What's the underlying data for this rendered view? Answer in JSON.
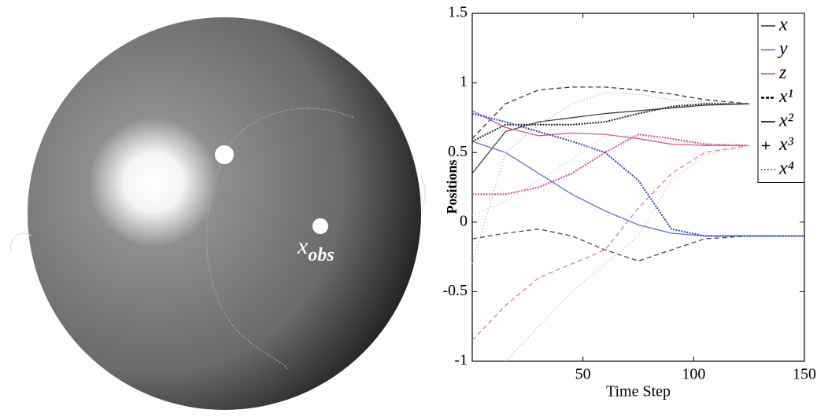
{
  "figure": {
    "sphere_label": {
      "base": "x",
      "subscript": "obs"
    }
  },
  "chart_data": {
    "type": "line",
    "xlabel": "Time Step",
    "ylabel": "Positions",
    "x": [
      0,
      15,
      30,
      45,
      60,
      75,
      90,
      105,
      125,
      150
    ],
    "xlim": [
      0,
      150
    ],
    "xticks": [
      50,
      100,
      150
    ],
    "ylim": [
      -1,
      1.5
    ],
    "yticks": [
      -1,
      -0.5,
      0,
      0.5,
      1,
      1.5
    ],
    "series": [
      {
        "color": "#333333",
        "style": "dashed",
        "values": [
          0.6,
          0.85,
          0.95,
          0.97,
          0.97,
          0.95,
          0.92,
          0.88,
          0.85,
          null
        ]
      },
      {
        "color": "#444466",
        "style": "dashed",
        "values": [
          -0.12,
          -0.08,
          -0.05,
          -0.1,
          -0.2,
          -0.28,
          -0.2,
          -0.12,
          -0.1,
          -0.1
        ]
      },
      {
        "color": "#e07a9a",
        "style": "dashed",
        "values": [
          -0.85,
          -0.6,
          -0.4,
          -0.3,
          -0.2,
          0.1,
          0.35,
          0.5,
          0.55,
          null
        ]
      },
      {
        "color": "#333333",
        "style": "solid",
        "values": [
          0.35,
          0.65,
          0.72,
          0.75,
          0.78,
          0.8,
          0.82,
          0.84,
          0.85,
          null
        ]
      },
      {
        "color": "#5566cc",
        "style": "solid",
        "values": [
          0.58,
          0.5,
          0.35,
          0.2,
          0.08,
          -0.02,
          -0.08,
          -0.1,
          -0.1,
          -0.1
        ]
      },
      {
        "color": "#d04a90",
        "style": "solid",
        "values": [
          0.8,
          0.68,
          0.62,
          0.64,
          0.63,
          0.6,
          0.56,
          0.55,
          0.55,
          null
        ]
      },
      {
        "color": "#222222",
        "style": "plus",
        "values": [
          0.58,
          0.7,
          0.7,
          0.7,
          0.72,
          0.78,
          0.83,
          0.85,
          0.85,
          null
        ]
      },
      {
        "color": "#3344bb",
        "style": "plus",
        "values": [
          0.78,
          0.72,
          0.65,
          0.58,
          0.5,
          0.3,
          -0.05,
          -0.1,
          -0.1,
          -0.1
        ]
      },
      {
        "color": "#d04a90",
        "style": "plus",
        "values": [
          0.2,
          0.2,
          0.25,
          0.35,
          0.5,
          0.63,
          0.6,
          0.56,
          0.55,
          null
        ]
      },
      {
        "color": "#b0b0b0",
        "style": "dotted",
        "values": [
          -0.3,
          0.5,
          0.7,
          0.85,
          0.93,
          0.92,
          0.88,
          0.86,
          0.85,
          null
        ]
      },
      {
        "color": "#f0a8c0",
        "style": "dotted",
        "values": [
          null,
          -1,
          -0.75,
          -0.5,
          -0.3,
          -0.1,
          0.3,
          0.48,
          0.55,
          null
        ]
      },
      {
        "color": "#c8c8c8",
        "style": "dotted",
        "values": [
          0.05,
          0.15,
          0.3,
          0.45,
          0.62,
          0.62,
          0.58,
          0.56,
          0.55,
          null
        ]
      }
    ],
    "legend": [
      {
        "label": "x",
        "color": "#333333",
        "style": "solid"
      },
      {
        "label": "y",
        "color": "#5566cc",
        "style": "solid"
      },
      {
        "label": "z",
        "color": "#d04a90",
        "style": "solid"
      },
      {
        "label": "x¹",
        "color": "#000000",
        "style": "dashed"
      },
      {
        "label": "x²",
        "color": "#000000",
        "style": "solid"
      },
      {
        "label": "x³",
        "color": "#000000",
        "style": "plus"
      },
      {
        "label": "x⁴",
        "color": "#000000",
        "style": "dotted"
      }
    ]
  }
}
